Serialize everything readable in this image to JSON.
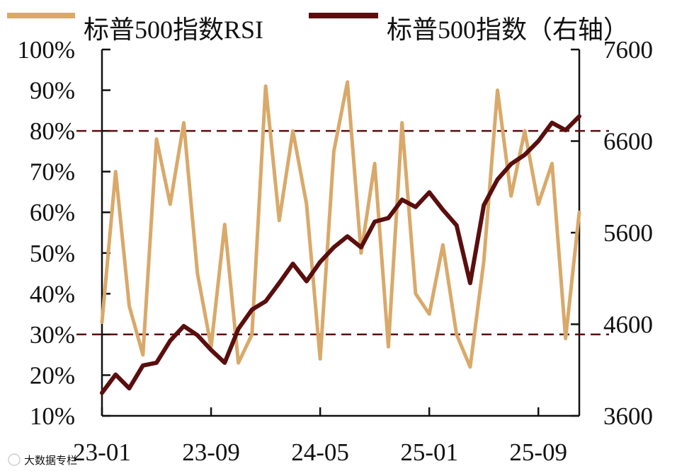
{
  "chart_data": {
    "type": "line",
    "legend": {
      "placement": "top",
      "entries": [
        {
          "key": "rsi",
          "label": "标普500指数RSI",
          "color": "#D9A96A"
        },
        {
          "key": "index",
          "label": "标普500指数（右轴）",
          "color": "#5A0E0E"
        }
      ]
    },
    "left_axis": {
      "ylim": [
        0.1,
        1.0
      ],
      "ticks": [
        0.1,
        0.2,
        0.3,
        0.4,
        0.5,
        0.6,
        0.7,
        0.8,
        0.9,
        1.0
      ],
      "tick_labels": [
        "10%",
        "20%",
        "30%",
        "40%",
        "50%",
        "60%",
        "70%",
        "80%",
        "90%",
        "100%"
      ]
    },
    "right_axis": {
      "ylim": [
        3600,
        7600
      ],
      "ticks": [
        3600,
        4600,
        5600,
        6600,
        7600
      ],
      "tick_labels": [
        "3600",
        "4600",
        "5600",
        "6600",
        "7600"
      ]
    },
    "x_axis": {
      "xlim": [
        "2023-01",
        "2025-12"
      ],
      "ticks": [
        "2023-01",
        "2023-09",
        "2024-05",
        "2025-01",
        "2025-09"
      ],
      "tick_labels": [
        "23-01",
        "23-09",
        "24-05",
        "25-01",
        "25-09"
      ]
    },
    "reference_lines": [
      {
        "axis": "left",
        "value": 0.8,
        "style": "dashed",
        "color": "#5A0E0E"
      },
      {
        "axis": "left",
        "value": 0.3,
        "style": "dashed",
        "color": "#5A0E0E"
      }
    ],
    "series": [
      {
        "key": "rsi",
        "name": "标普500指数RSI",
        "axis": "left",
        "color": "#D9A96A",
        "x": [
          "2023-01",
          "2023-02",
          "2023-03",
          "2023-04",
          "2023-05",
          "2023-06",
          "2023-07",
          "2023-08",
          "2023-09",
          "2023-10",
          "2023-11",
          "2023-12",
          "2024-01",
          "2024-02",
          "2024-03",
          "2024-04",
          "2024-05",
          "2024-06",
          "2024-07",
          "2024-08",
          "2024-09",
          "2024-10",
          "2024-11",
          "2024-12",
          "2025-01",
          "2025-02",
          "2025-03",
          "2025-04",
          "2025-05",
          "2025-06",
          "2025-07",
          "2025-08",
          "2025-09",
          "2025-10",
          "2025-11",
          "2025-12"
        ],
        "values": [
          0.33,
          0.7,
          0.37,
          0.25,
          0.78,
          0.62,
          0.82,
          0.45,
          0.27,
          0.57,
          0.23,
          0.3,
          0.91,
          0.58,
          0.8,
          0.62,
          0.24,
          0.75,
          0.92,
          0.5,
          0.72,
          0.27,
          0.82,
          0.4,
          0.35,
          0.52,
          0.3,
          0.22,
          0.48,
          0.9,
          0.64,
          0.8,
          0.62,
          0.72,
          0.29,
          0.6
        ]
      },
      {
        "key": "index",
        "name": "标普500指数（右轴）",
        "axis": "right",
        "color": "#5A0E0E",
        "x": [
          "2023-01",
          "2023-02",
          "2023-03",
          "2023-04",
          "2023-05",
          "2023-06",
          "2023-07",
          "2023-08",
          "2023-09",
          "2023-10",
          "2023-11",
          "2023-12",
          "2024-01",
          "2024-02",
          "2024-03",
          "2024-04",
          "2024-05",
          "2024-06",
          "2024-07",
          "2024-08",
          "2024-09",
          "2024-10",
          "2024-11",
          "2024-12",
          "2025-01",
          "2025-02",
          "2025-03",
          "2025-04",
          "2025-05",
          "2025-06",
          "2025-07",
          "2025-08",
          "2025-09",
          "2025-10",
          "2025-11",
          "2025-12"
        ],
        "values": [
          3850,
          4050,
          3900,
          4150,
          4180,
          4420,
          4580,
          4480,
          4320,
          4180,
          4550,
          4760,
          4850,
          5050,
          5260,
          5070,
          5280,
          5440,
          5560,
          5440,
          5720,
          5760,
          5960,
          5880,
          6040,
          5850,
          5680,
          5050,
          5900,
          6180,
          6350,
          6450,
          6600,
          6800,
          6720,
          6870
        ]
      }
    ]
  },
  "watermark": "大数据专栏"
}
